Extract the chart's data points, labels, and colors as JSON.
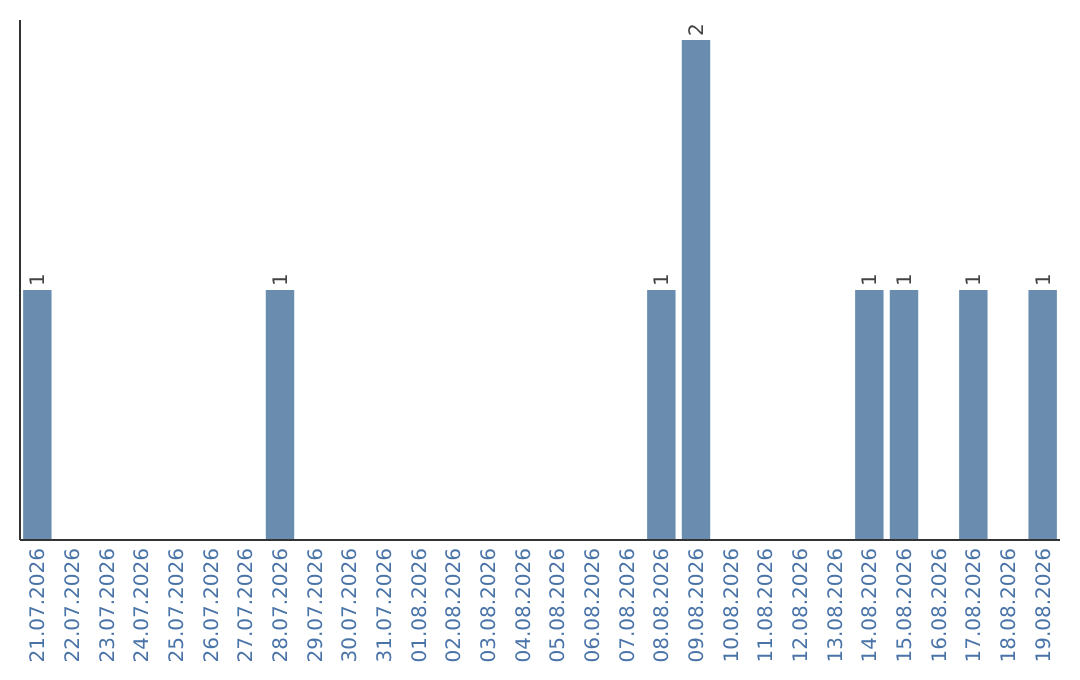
{
  "chart_data": {
    "type": "bar",
    "categories": [
      "21.07.2026",
      "22.07.2026",
      "23.07.2026",
      "24.07.2026",
      "25.07.2026",
      "26.07.2026",
      "27.07.2026",
      "28.07.2026",
      "29.07.2026",
      "30.07.2026",
      "31.07.2026",
      "01.08.2026",
      "02.08.2026",
      "03.08.2026",
      "04.08.2026",
      "05.08.2026",
      "06.08.2026",
      "07.08.2026",
      "08.08.2026",
      "09.08.2026",
      "10.08.2026",
      "11.08.2026",
      "12.08.2026",
      "13.08.2026",
      "14.08.2026",
      "15.08.2026",
      "16.08.2026",
      "17.08.2026",
      "18.08.2026",
      "19.08.2026"
    ],
    "values": [
      1,
      0,
      0,
      0,
      0,
      0,
      0,
      1,
      0,
      0,
      0,
      0,
      0,
      0,
      0,
      0,
      0,
      0,
      1,
      2,
      0,
      0,
      0,
      0,
      1,
      1,
      0,
      1,
      0,
      1
    ],
    "value_labels": [
      "1",
      null,
      null,
      null,
      null,
      null,
      null,
      "1",
      null,
      null,
      null,
      null,
      null,
      null,
      null,
      null,
      null,
      null,
      "1",
      "2",
      null,
      null,
      null,
      null,
      "1",
      "1",
      null,
      "1",
      null,
      "1"
    ],
    "color": "#6a8caf",
    "tick_labels": "x"
  }
}
